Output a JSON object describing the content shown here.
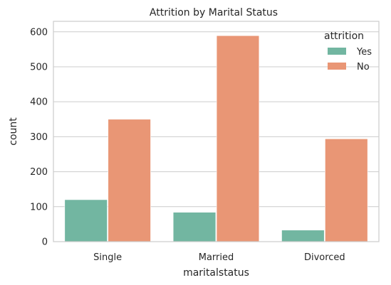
{
  "chart_data": {
    "type": "bar",
    "title": "Attrition by Marital Status",
    "xlabel": "maritalstatus",
    "ylabel": "count",
    "categories": [
      "Single",
      "Married",
      "Divorced"
    ],
    "series": [
      {
        "name": "Yes",
        "values": [
          120,
          84,
          33
        ],
        "color": "#72b6a1"
      },
      {
        "name": "No",
        "values": [
          350,
          589,
          294
        ],
        "color": "#e99675"
      }
    ],
    "ylim": [
      0,
      630
    ],
    "yticks": [
      0,
      100,
      200,
      300,
      400,
      500,
      600
    ],
    "legend": {
      "title": "attrition",
      "placement": "top-right"
    },
    "grid": "horizontal"
  }
}
